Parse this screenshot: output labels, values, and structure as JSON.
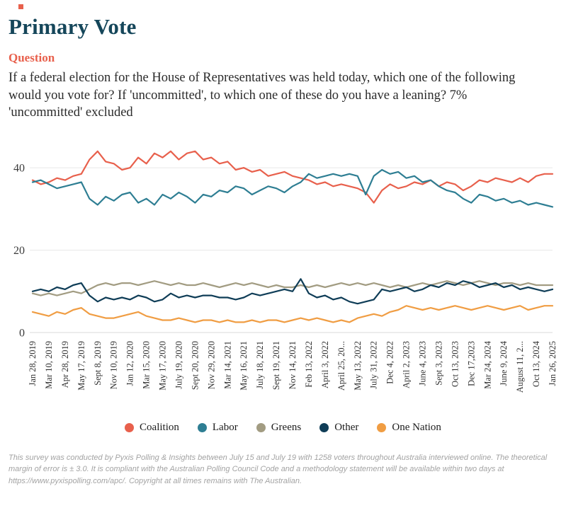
{
  "page": {
    "title": "Primary Vote",
    "question_label": "Question",
    "question_text": "If a federal election for the House of Representatives was held today, which one of the following would you vote for? If 'uncommitted', to which one of these do you have a leaning? 7% 'uncommitted' excluded",
    "footer": "This survey was conducted by Pyxis Polling & Insights between July 15 and July 19 with 1258 voters throughout Australia interviewed online. The theoretical margin of error is ± 3.0. It is compliant with the Australian Polling Council Code and a methodology statement will be available within two days at https://www.pyxispolling.com/apc/. Copyright at all times remains with The Australian."
  },
  "colors": {
    "title": "#15465a",
    "question_heading": "#e8604c",
    "grid": "#e8e8e8",
    "axis_text": "#3a3a3a"
  },
  "chart_data": {
    "type": "line",
    "title": "Primary Vote",
    "xlabel": "",
    "ylabel": "",
    "ylim": [
      0,
      45
    ],
    "yticks": [
      0,
      20,
      40
    ],
    "grid": true,
    "legend_position": "bottom",
    "points_per_interval": 2,
    "x_tick_labels": [
      "Jan 28, 2019",
      "Mar 10, 2019",
      "Apr 28, 2019",
      "May 17, 2019",
      "Sept 8, 2019",
      "Nov 10, 2019",
      "Jan 12, 2020",
      "Mar 15, 2020",
      "May 17, 2020",
      "July 19, 2020",
      "Sept 20, 2020",
      "Nov 29, 2020",
      "Mar 14, 2021",
      "May 16, 2021",
      "July 18, 2021",
      "Sept 19, 2021",
      "Nov 14, 2021",
      "Feb 13, 2022",
      "April 3, 2022",
      "April 25, 20...",
      "May 13, 2022",
      "July 31, 2022",
      "Dec 4, 2022",
      "April 2, 2023",
      "June 4, 2023",
      "Sept 3, 2023",
      "Oct 13, 2023",
      "Dec 17,2023",
      "Mar 24, 2024",
      "June 9, 2024",
      "August 11, 2...",
      "Oct 13, 2024",
      "Jan 26, 2025"
    ],
    "series": [
      {
        "name": "Coalition",
        "color": "#e8604c",
        "values": [
          37,
          36,
          36.5,
          37.5,
          37,
          38,
          38.5,
          42,
          44,
          41.5,
          41,
          39.5,
          40,
          42.5,
          41,
          43.5,
          42.5,
          44,
          42,
          43.5,
          44,
          42,
          42.5,
          41,
          41.5,
          39.5,
          40,
          39,
          39.5,
          38,
          38.5,
          39,
          38,
          37.5,
          37,
          36,
          36.5,
          35.5,
          36,
          35.5,
          35,
          34,
          31.5,
          34.5,
          36,
          35,
          35.5,
          36.5,
          36,
          37,
          35.5,
          36.5,
          36,
          34.5,
          35.5,
          37,
          36.5,
          37.5,
          37,
          36.5,
          37.5,
          36.5,
          38,
          38.5,
          38.5
        ]
      },
      {
        "name": "Labor",
        "color": "#2e7e93",
        "values": [
          36.5,
          37,
          36,
          35,
          35.5,
          36,
          36.5,
          32.5,
          31,
          33,
          32,
          33.5,
          34,
          31.5,
          32.5,
          31,
          33.5,
          32.5,
          34,
          33,
          31.5,
          33.5,
          33,
          34.5,
          34,
          35.5,
          35,
          33.5,
          34.5,
          35.5,
          35,
          34,
          35.5,
          36.5,
          38.5,
          37.5,
          38,
          38.5,
          38,
          38.5,
          38,
          33.5,
          38,
          39.5,
          38.5,
          39,
          37.5,
          38,
          36.5,
          37,
          35.5,
          34.5,
          34,
          32.5,
          31.5,
          33.5,
          33,
          32,
          32.5,
          31.5,
          32,
          31,
          31.5,
          31,
          30.5
        ]
      },
      {
        "name": "Greens",
        "color": "#a29c82",
        "values": [
          9.5,
          9,
          9.5,
          9,
          9.5,
          10,
          9.5,
          10.5,
          11.5,
          12,
          11.5,
          12,
          12,
          11.5,
          12,
          12.5,
          12,
          11.5,
          12,
          11.5,
          11.5,
          12,
          11.5,
          11,
          11.5,
          12,
          11.5,
          12,
          11.5,
          11,
          11.5,
          11,
          11,
          11.5,
          11,
          11.5,
          11,
          11.5,
          12,
          11.5,
          12,
          11.5,
          12,
          11.5,
          11,
          11.5,
          11,
          11.5,
          12,
          11.5,
          12,
          12.5,
          12,
          11.5,
          12,
          12.5,
          12,
          11.5,
          12,
          12,
          11.5,
          12,
          11.5,
          11.5,
          11.5
        ]
      },
      {
        "name": "Other",
        "color": "#0f3d57",
        "values": [
          10,
          10.5,
          10,
          11,
          10.5,
          11.5,
          12,
          9,
          7.5,
          8.5,
          8,
          8.5,
          8,
          9,
          8.5,
          7.5,
          8,
          9.5,
          8.5,
          9,
          8.5,
          9,
          9,
          8.5,
          8.5,
          8,
          8.5,
          9.5,
          9,
          9.5,
          10,
          10.5,
          10,
          13,
          9.5,
          8.5,
          9,
          8,
          8.5,
          7.5,
          7,
          7.5,
          8,
          10.5,
          10,
          10.5,
          11,
          10,
          10.5,
          11.5,
          11,
          12,
          11.5,
          12.5,
          12,
          11,
          11.5,
          12,
          11,
          11.5,
          10.5,
          11,
          10.5,
          10,
          10.5
        ]
      },
      {
        "name": "One Nation",
        "color": "#f09d43",
        "values": [
          5,
          4.5,
          4,
          5,
          4.5,
          5.5,
          6,
          4.5,
          4,
          3.5,
          3.5,
          4,
          4.5,
          5,
          4,
          3.5,
          3,
          3,
          3.5,
          3,
          2.5,
          3,
          3,
          2.5,
          3,
          2.5,
          2.5,
          3,
          2.5,
          3,
          3,
          2.5,
          3,
          3.5,
          3,
          3.5,
          3,
          2.5,
          3,
          2.5,
          3.5,
          4,
          4.5,
          4,
          5,
          5.5,
          6.5,
          6,
          5.5,
          6,
          5.5,
          6,
          6.5,
          6,
          5.5,
          6,
          6.5,
          6,
          5.5,
          6,
          6.5,
          5.5,
          6,
          6.5,
          6.5
        ]
      }
    ]
  }
}
